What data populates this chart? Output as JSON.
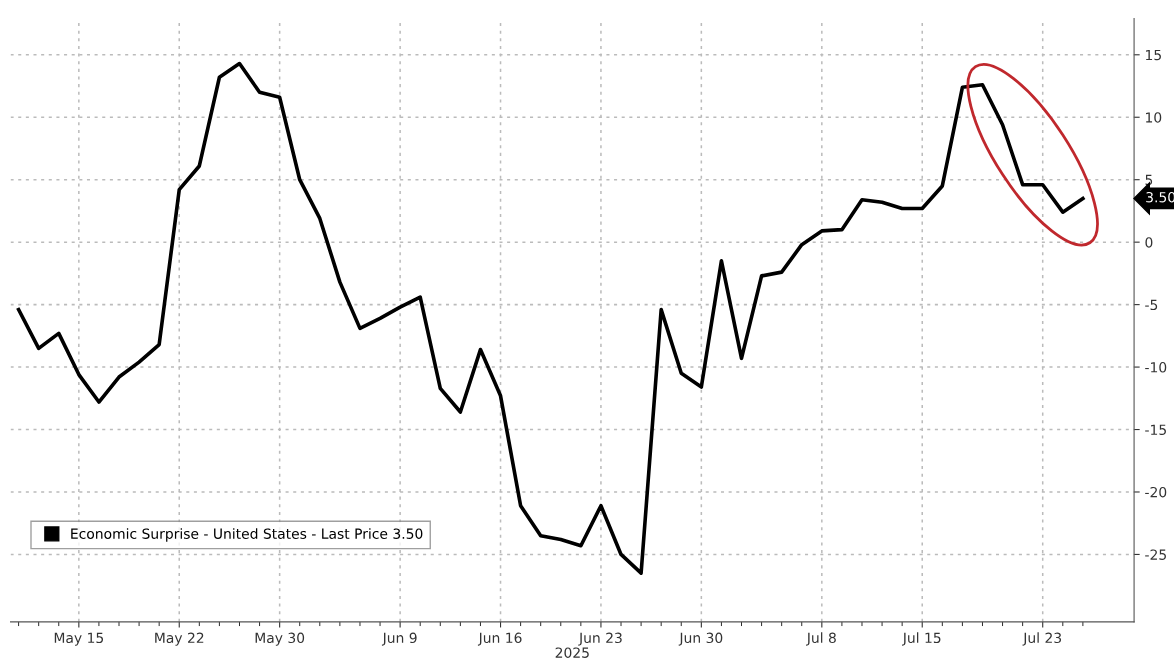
{
  "chart_data": {
    "type": "line",
    "xlabel": "2025",
    "categories": [
      null,
      null,
      null,
      "May 15",
      null,
      null,
      null,
      null,
      "May 22",
      null,
      null,
      null,
      null,
      "May 30",
      null,
      null,
      null,
      null,
      null,
      "Jun 9",
      null,
      null,
      null,
      null,
      "Jun 16",
      null,
      null,
      null,
      null,
      "Jun 23",
      null,
      null,
      null,
      null,
      "Jun 30",
      null,
      null,
      null,
      null,
      null,
      "Jul 8",
      null,
      null,
      null,
      null,
      "Jul 15",
      null,
      null,
      null,
      null,
      null,
      "Jul 23",
      null,
      null
    ],
    "series": [
      {
        "name": "Economic Surprise - United States - Last Price 3.50",
        "color": "#000000",
        "values": [
          -5.4,
          -8.5,
          -7.3,
          -10.6,
          -12.8,
          -10.8,
          -9.6,
          -8.2,
          4.2,
          6.1,
          13.2,
          14.3,
          12.0,
          11.6,
          5.0,
          1.9,
          -3.2,
          -6.9,
          -6.1,
          -5.2,
          -4.4,
          -11.7,
          -13.6,
          -8.6,
          -12.3,
          -21.1,
          -23.5,
          -23.8,
          -24.3,
          -21.1,
          -25.0,
          -26.5,
          -5.4,
          -10.5,
          -11.6,
          -1.5,
          -9.3,
          -2.7,
          -2.4,
          -0.2,
          0.9,
          1.0,
          3.4,
          3.2,
          2.7,
          2.7,
          4.5,
          12.4,
          12.6,
          9.4,
          4.6,
          4.6,
          2.4,
          3.5
        ]
      }
    ],
    "ylim": [
      -30.4,
      17.9
    ],
    "yticks": [
      -25,
      -20,
      -15,
      -10,
      -5,
      0,
      5,
      10,
      15
    ],
    "annotations": [
      "3.50"
    ],
    "grid": true,
    "legend": "bottom left",
    "marker": "none",
    "line_style": "solid"
  }
}
